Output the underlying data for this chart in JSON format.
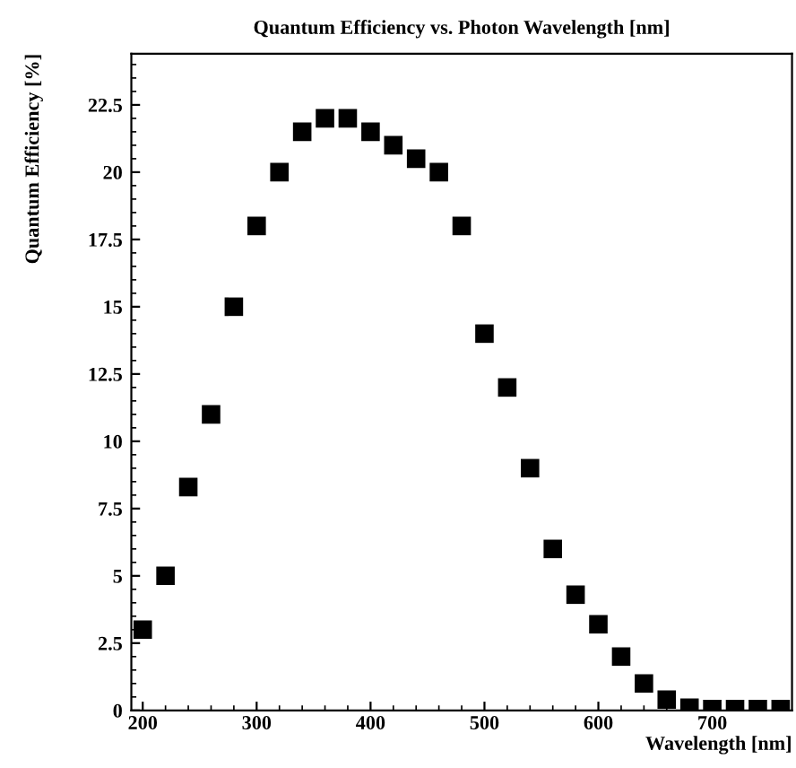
{
  "chart_data": {
    "type": "scatter",
    "title": "Quantum Efficiency vs. Photon Wavelength [nm]",
    "xlabel": "Wavelength [nm]",
    "ylabel": "Quantum Efficiency [%]",
    "x": [
      200,
      220,
      240,
      260,
      280,
      300,
      320,
      340,
      360,
      380,
      400,
      420,
      440,
      460,
      480,
      500,
      520,
      540,
      560,
      580,
      600,
      620,
      640,
      660,
      680,
      700,
      720,
      740,
      760
    ],
    "series": [
      {
        "color": "#000000",
        "values": [
          3,
          5,
          8.3,
          11,
          15,
          18,
          20,
          21.5,
          22,
          22,
          21.5,
          21,
          20.5,
          20,
          18,
          14,
          12,
          9,
          6,
          4.3,
          3.2,
          2,
          1,
          0.4,
          0.1,
          0.05,
          0.05,
          0.05,
          0.05
        ]
      }
    ],
    "marker": "square",
    "xlim": [
      190,
      770
    ],
    "xticks": [
      200,
      300,
      400,
      500,
      600,
      700
    ],
    "ylim": [
      0,
      24.4
    ],
    "yticks": [
      0,
      2.5,
      5,
      7.5,
      10,
      12.5,
      15,
      17.5,
      20,
      22.5
    ],
    "grid": false,
    "legend": false
  }
}
